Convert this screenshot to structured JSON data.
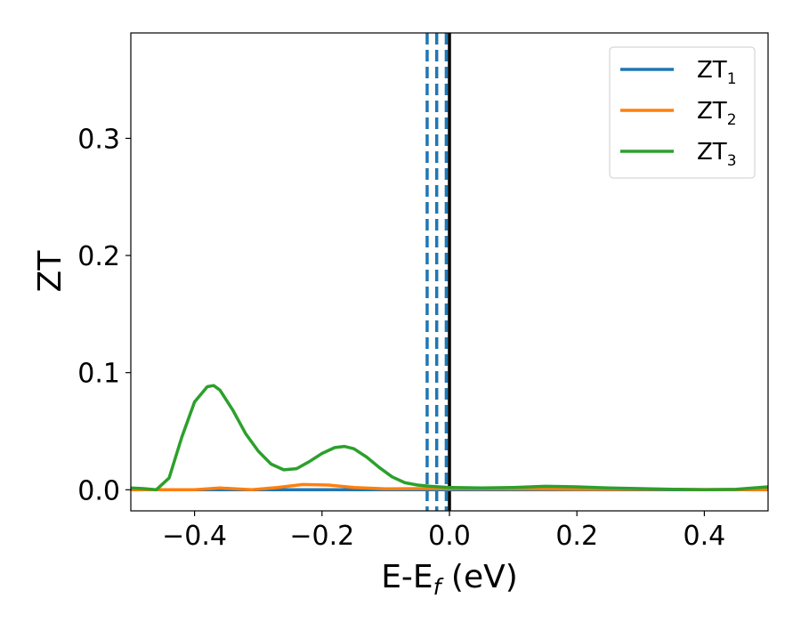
{
  "chart_data": {
    "type": "line",
    "xlabel": "E-E",
    "xlabel_sub": "f",
    "xlabel_unit": " (eV)",
    "ylabel": "ZT",
    "xlim": [
      -0.5,
      0.5
    ],
    "ylim": [
      -0.018,
      0.39
    ],
    "xticks": [
      -0.4,
      -0.2,
      0.0,
      0.2,
      0.4
    ],
    "xtick_labels": [
      "−0.4",
      "−0.2",
      "0.0",
      "0.2",
      "0.4"
    ],
    "yticks": [
      0.0,
      0.1,
      0.2,
      0.3
    ],
    "ytick_labels": [
      "0.0",
      "0.1",
      "0.2",
      "0.3"
    ],
    "grid": false,
    "legend_position": "top-right",
    "series": [
      {
        "name": "ZT",
        "name_sub": "1",
        "color": "#1f77b4",
        "x": [
          -0.5,
          0.5
        ],
        "y": [
          0.0,
          0.0
        ]
      },
      {
        "name": "ZT",
        "name_sub": "2",
        "color": "#ff7f0e",
        "x": [
          -0.5,
          -0.45,
          -0.4,
          -0.36,
          -0.31,
          -0.27,
          -0.23,
          -0.19,
          -0.15,
          -0.1,
          -0.05,
          0.0,
          0.1,
          0.2,
          0.3,
          0.4,
          0.5
        ],
        "y": [
          0.0,
          0.0,
          0.0,
          0.0015,
          0.0,
          0.002,
          0.0045,
          0.004,
          0.002,
          0.0008,
          0.001,
          0.001,
          0.0008,
          0.0005,
          0.0005,
          0.0002,
          0.0
        ]
      },
      {
        "name": "ZT",
        "name_sub": "3",
        "color": "#2ca02c",
        "x": [
          -0.5,
          -0.48,
          -0.46,
          -0.44,
          -0.42,
          -0.4,
          -0.38,
          -0.37,
          -0.36,
          -0.34,
          -0.32,
          -0.3,
          -0.28,
          -0.26,
          -0.24,
          -0.22,
          -0.2,
          -0.18,
          -0.165,
          -0.15,
          -0.13,
          -0.11,
          -0.09,
          -0.07,
          -0.05,
          -0.03,
          0.0,
          0.05,
          0.1,
          0.15,
          0.2,
          0.25,
          0.3,
          0.35,
          0.4,
          0.45,
          0.5
        ],
        "y": [
          0.0015,
          0.001,
          0.0,
          0.01,
          0.045,
          0.075,
          0.088,
          0.089,
          0.085,
          0.068,
          0.048,
          0.033,
          0.022,
          0.017,
          0.018,
          0.024,
          0.031,
          0.036,
          0.037,
          0.035,
          0.028,
          0.019,
          0.011,
          0.006,
          0.004,
          0.003,
          0.002,
          0.0015,
          0.002,
          0.003,
          0.0025,
          0.0015,
          0.001,
          0.0005,
          0.0,
          0.0005,
          0.0025
        ]
      }
    ],
    "vlines": [
      {
        "x": -0.035,
        "color": "#1f77b4",
        "style": "dashed"
      },
      {
        "x": -0.02,
        "color": "#1f77b4",
        "style": "dashed"
      },
      {
        "x": -0.005,
        "color": "#1f77b4",
        "style": "dashed"
      },
      {
        "x": 0.0,
        "color": "#000000",
        "style": "solid"
      }
    ]
  }
}
